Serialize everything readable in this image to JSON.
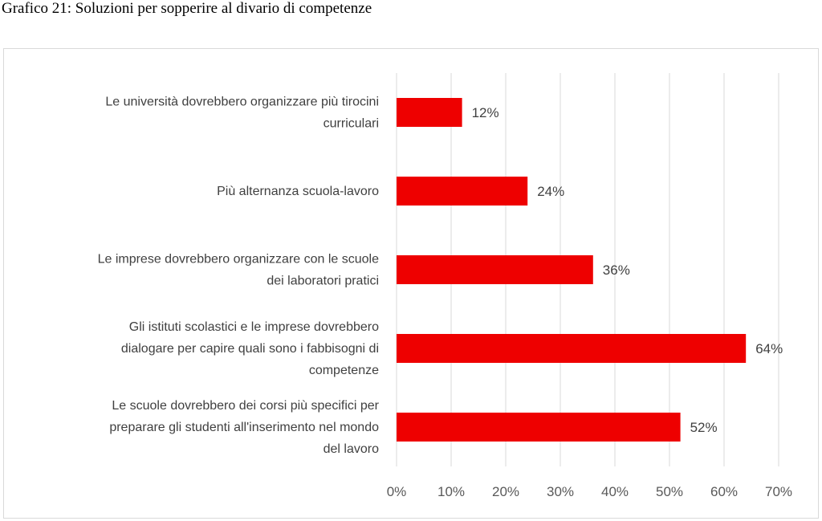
{
  "figure_title": "Grafico 21: Soluzioni per sopperire al divario di competenze",
  "chart_data": {
    "type": "bar",
    "orientation": "horizontal",
    "categories": [
      "Le università dovrebbero organizzare più tirocini curriculari",
      "Più alternanza scuola-lavoro",
      "Le imprese dovrebbero organizzare con le scuole dei laboratori pratici",
      "Gli istituti scolastici e le imprese dovrebbero dialogare per capire quali sono i fabbisogni di competenze",
      "Le scuole dovrebbero dei corsi più specifici per preparare gli studenti all'inserimento nel mondo del lavoro"
    ],
    "category_label_lines": [
      [
        "Le università dovrebbero organizzare più tirocini",
        "curriculari"
      ],
      [
        "Più alternanza scuola-lavoro"
      ],
      [
        "Le imprese dovrebbero organizzare con le scuole",
        "dei laboratori pratici"
      ],
      [
        "Gli istituti scolastici e le imprese dovrebbero",
        "dialogare per capire quali sono i fabbisogni di",
        "competenze"
      ],
      [
        "Le scuole dovrebbero dei corsi più specifici per",
        "preparare gli studenti all'inserimento nel mondo",
        "del lavoro"
      ]
    ],
    "values": [
      12,
      24,
      36,
      64,
      52
    ],
    "data_labels": [
      "12%",
      "24%",
      "36%",
      "64%",
      "52%"
    ],
    "xlim": [
      0,
      70
    ],
    "ticks": [
      0,
      10,
      20,
      30,
      40,
      50,
      60,
      70
    ],
    "tick_labels": [
      "0%",
      "10%",
      "20%",
      "30%",
      "40%",
      "50%",
      "60%",
      "70%"
    ],
    "grid": "vertical",
    "legend": "none",
    "bar_color": "#ee0000",
    "grid_color": "#d9d9d9"
  }
}
